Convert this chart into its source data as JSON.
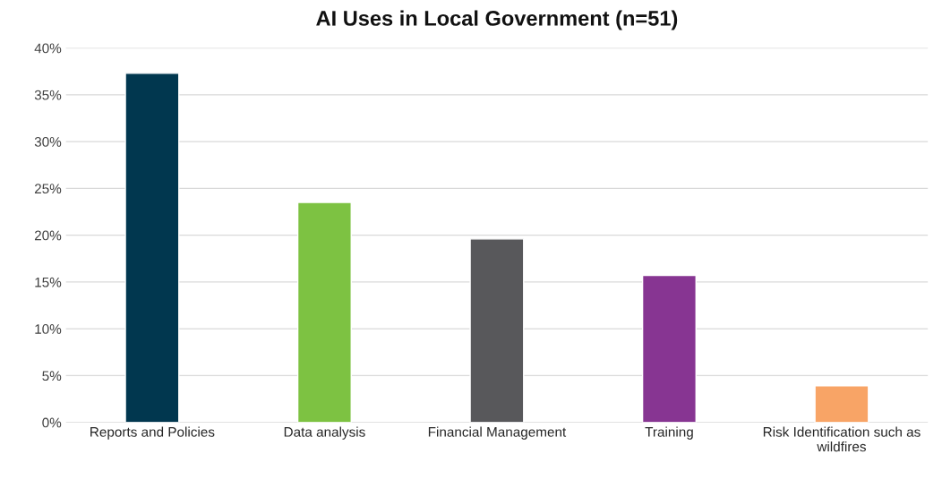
{
  "chart_data": {
    "type": "bar",
    "title": "AI Uses in Local Government (n=51)",
    "categories": [
      "Reports and Policies",
      "Data analysis",
      "Financial Management",
      "Training",
      "Risk Identification such as\nwildfires"
    ],
    "values": [
      37.3,
      23.5,
      19.6,
      15.7,
      3.9
    ],
    "colors": [
      "#01374f",
      "#7dc242",
      "#58585b",
      "#873592",
      "#f8a466"
    ],
    "ylim": [
      0,
      40
    ],
    "yticks": [
      {
        "value": 0,
        "label": "0%"
      },
      {
        "value": 5,
        "label": "5%"
      },
      {
        "value": 10,
        "label": "10%"
      },
      {
        "value": 15,
        "label": "15%"
      },
      {
        "value": 20,
        "label": "20%"
      },
      {
        "value": 25,
        "label": "25%"
      },
      {
        "value": 30,
        "label": "30%"
      },
      {
        "value": 35,
        "label": "35%"
      },
      {
        "value": 40,
        "label": "40%"
      }
    ],
    "grid": "y",
    "legend": false
  }
}
